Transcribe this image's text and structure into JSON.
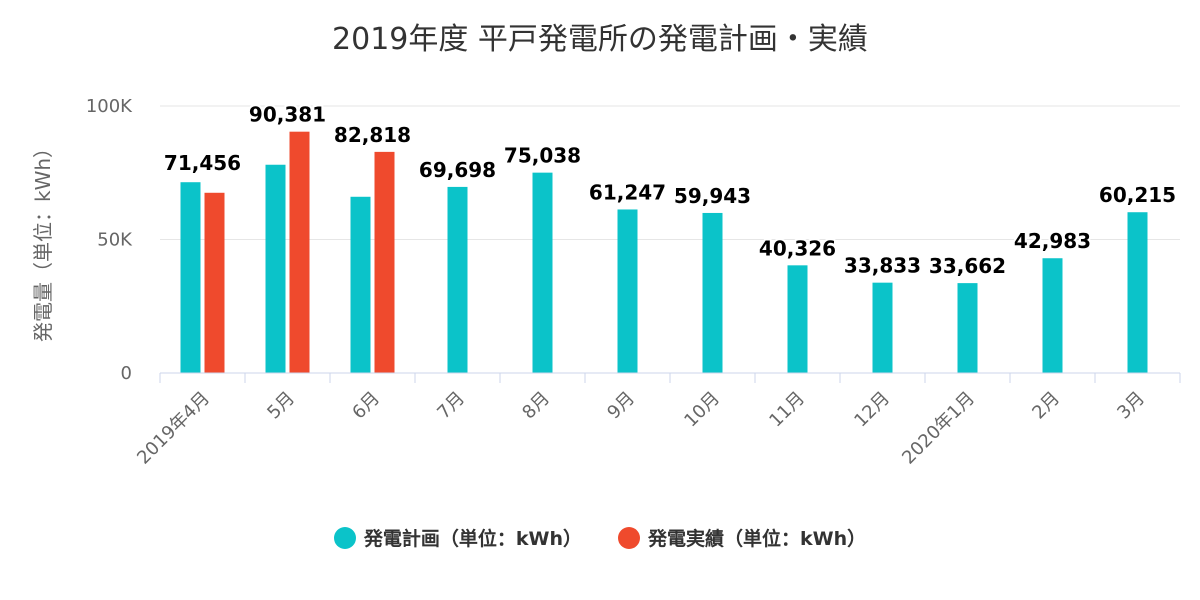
{
  "chart_data": {
    "type": "bar",
    "title": "2019年度 平戸発電所の発電計画・実績",
    "ylabel": "発電量（単位：kWh）",
    "xlabel": "",
    "ylim": [
      0,
      100000
    ],
    "yticks": [
      {
        "value": 0,
        "label": "0"
      },
      {
        "value": 50000,
        "label": "50K"
      },
      {
        "value": 100000,
        "label": "100K"
      }
    ],
    "categories": [
      "2019年4月",
      "5月",
      "6月",
      "7月",
      "8月",
      "9月",
      "10月",
      "11月",
      "12月",
      "2020年1月",
      "2月",
      "3月"
    ],
    "series": [
      {
        "name": "発電計画（単位：kWh）",
        "color": "#0bc3c9",
        "values": [
          71456,
          78000,
          66000,
          69698,
          75038,
          61247,
          59943,
          40326,
          33833,
          33662,
          42983,
          60215
        ],
        "labels": [
          "71,456",
          "",
          "",
          "69,698",
          "75,038",
          "61,247",
          "59,943",
          "40,326",
          "33,833",
          "33,662",
          "42,983",
          "60,215"
        ]
      },
      {
        "name": "発電実績（単位：kWh）",
        "color": "#ef4a2d",
        "values": [
          67500,
          90381,
          82818,
          null,
          null,
          null,
          null,
          null,
          null,
          null,
          null,
          null
        ],
        "labels": [
          "",
          "90,381",
          "82,818",
          "",
          "",
          "",
          "",
          "",
          "",
          "",
          "",
          ""
        ]
      }
    ],
    "grid": true,
    "legend": "bottom"
  }
}
